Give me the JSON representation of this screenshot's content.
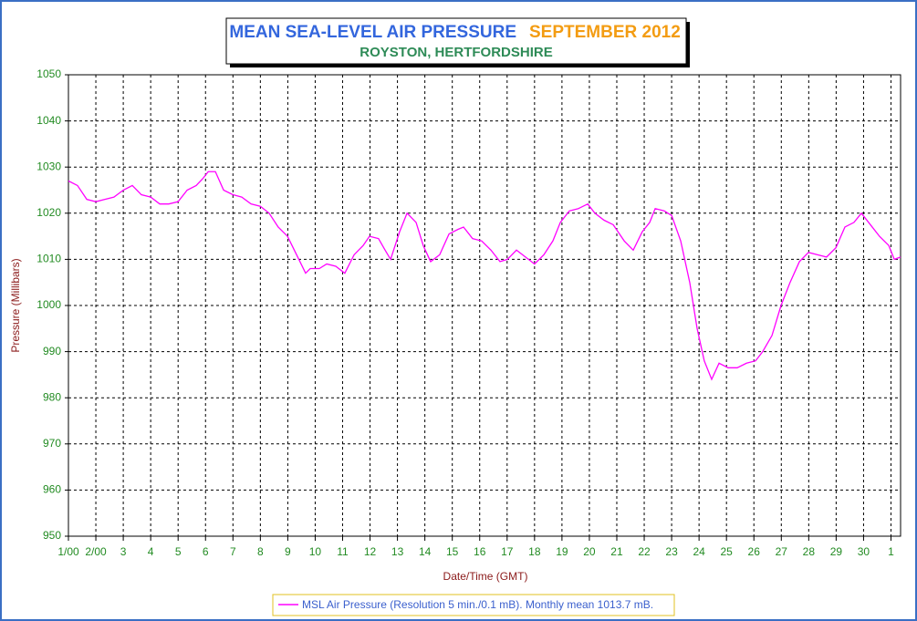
{
  "chart_data": {
    "type": "line",
    "title": "MEAN SEA-LEVEL AIR PRESSURE",
    "period": "SEPTEMBER 2012",
    "subtitle": "ROYSTON, HERTFORDSHIRE",
    "xlabel": "Date/Time (GMT)",
    "ylabel": "Pressure (Millibars)",
    "x": [
      0,
      0.33,
      0.67,
      1,
      1.33,
      1.66,
      2,
      2.33,
      2.66,
      3,
      3.33,
      3.66,
      4,
      4.33,
      4.66,
      4.9,
      5.1,
      5.36,
      5.66,
      6,
      6.32,
      6.66,
      7,
      7.32,
      7.65,
      7.99,
      8.32,
      8.65,
      8.82,
      9.15,
      9.42,
      9.75,
      10.08,
      10.42,
      10.75,
      10.98,
      11.31,
      11.55,
      11.75,
      12.08,
      12.35,
      12.68,
      12.94,
      13.21,
      13.54,
      13.88,
      14.21,
      14.41,
      14.74,
      15.07,
      15.41,
      15.74,
      16.01,
      16.34,
      16.67,
      17,
      17.34,
      17.67,
      17.94,
      18.27,
      18.6,
      18.94,
      19.2,
      19.53,
      19.87,
      20.27,
      20.6,
      20.93,
      21.2,
      21.4,
      21.73,
      22,
      22.33,
      22.66,
      22.93,
      23.19,
      23.46,
      23.73,
      24.06,
      24.39,
      24.73,
      25.06,
      25.32,
      25.66,
      25.99,
      26.32,
      26.66,
      26.99,
      27.32,
      27.65,
      27.99,
      28.32,
      28.65,
      28.92,
      29.25,
      29.58,
      29.92,
      30.12,
      30.35
    ],
    "series": [
      {
        "name": "MSL Air Pressure (Resolution 5 min./0.1 mB). Monthly mean 1013.7 mB.",
        "color": "#ff00ff",
        "values": [
          1027,
          1026,
          1023,
          1022.5,
          1023,
          1023.5,
          1025,
          1026,
          1024,
          1023.5,
          1022,
          1022,
          1022.5,
          1025,
          1026,
          1027.5,
          1029,
          1029,
          1025,
          1024,
          1023.5,
          1022,
          1021.5,
          1020,
          1017,
          1015,
          1011,
          1007,
          1008,
          1008,
          1009,
          1008.5,
          1007,
          1011,
          1013,
          1015,
          1014.5,
          1012,
          1010,
          1016,
          1020,
          1018,
          1013,
          1009.5,
          1011,
          1015.5,
          1016.5,
          1017,
          1014.5,
          1014,
          1012,
          1009.5,
          1010,
          1012,
          1010.5,
          1009,
          1011,
          1014,
          1018,
          1020.5,
          1021,
          1022,
          1020,
          1018.5,
          1017.5,
          1014,
          1012,
          1016,
          1018,
          1021,
          1020.5,
          1019.5,
          1014,
          1005,
          995,
          988,
          984,
          987.5,
          986.5,
          986.5,
          987.5,
          988,
          990,
          993.5,
          1000,
          1005,
          1009.5,
          1011.5,
          1011,
          1010.5,
          1012.5,
          1017,
          1018,
          1020,
          1017.5,
          1015,
          1013,
          1010,
          1010.5
        ]
      }
    ],
    "xlim": [
      0,
      30.35
    ],
    "xticks": [
      {
        "value": 0,
        "label": "1/00"
      },
      {
        "value": 1,
        "label": "2/00"
      },
      {
        "value": 2,
        "label": "3"
      },
      {
        "value": 3,
        "label": "4"
      },
      {
        "value": 4,
        "label": "5"
      },
      {
        "value": 5,
        "label": "6"
      },
      {
        "value": 6,
        "label": "7"
      },
      {
        "value": 7,
        "label": "8"
      },
      {
        "value": 8,
        "label": "9"
      },
      {
        "value": 9,
        "label": "10"
      },
      {
        "value": 10,
        "label": "11"
      },
      {
        "value": 11,
        "label": "12"
      },
      {
        "value": 12,
        "label": "13"
      },
      {
        "value": 13,
        "label": "14"
      },
      {
        "value": 14,
        "label": "15"
      },
      {
        "value": 15,
        "label": "16"
      },
      {
        "value": 16,
        "label": "17"
      },
      {
        "value": 17,
        "label": "18"
      },
      {
        "value": 18,
        "label": "19"
      },
      {
        "value": 19,
        "label": "20"
      },
      {
        "value": 20,
        "label": "21"
      },
      {
        "value": 21,
        "label": "22"
      },
      {
        "value": 22,
        "label": "23"
      },
      {
        "value": 23,
        "label": "24"
      },
      {
        "value": 24,
        "label": "25"
      },
      {
        "value": 25,
        "label": "26"
      },
      {
        "value": 26,
        "label": "27"
      },
      {
        "value": 27,
        "label": "28"
      },
      {
        "value": 28,
        "label": "29"
      },
      {
        "value": 29,
        "label": "30"
      },
      {
        "value": 30,
        "label": "1"
      }
    ],
    "ylim": [
      950,
      1050
    ],
    "yticks": [
      950,
      960,
      970,
      980,
      990,
      1000,
      1010,
      1020,
      1030,
      1040,
      1050
    ],
    "grid": true
  }
}
